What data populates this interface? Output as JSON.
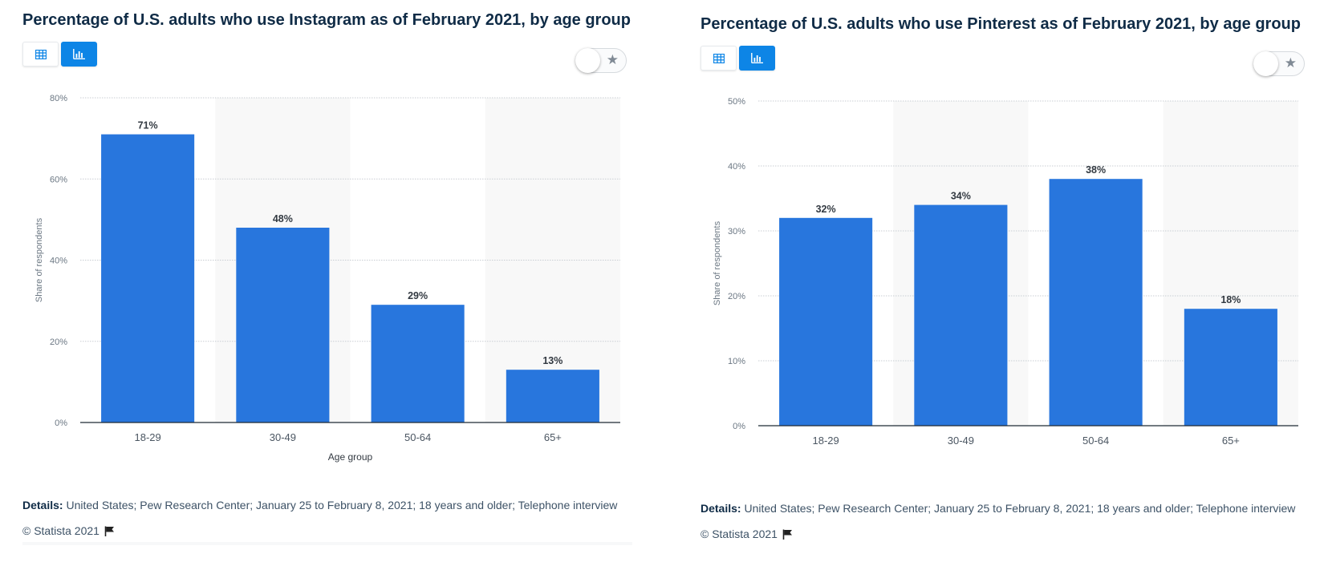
{
  "charts": [
    {
      "title": "Percentage of U.S. adults who use Instagram as of February 2021, by age group",
      "details_label": "Details:",
      "details_text": "United States; Pew Research Center; January 25 to February 8, 2021; 18 years and older; Telephone interview",
      "copyright": "© Statista 2021"
    },
    {
      "title": "Percentage of U.S. adults who use Pinterest as of February 2021, by age group",
      "details_label": "Details:",
      "details_text": "United States; Pew Research Center; January 25 to February 8, 2021; 18 years and older; Telephone interview",
      "copyright": "© Statista 2021"
    }
  ],
  "chart_data": [
    {
      "type": "bar",
      "title": "Percentage of U.S. adults who use Instagram as of February 2021, by age group",
      "categories": [
        "18-29",
        "30-49",
        "50-64",
        "65+"
      ],
      "values": [
        71,
        48,
        29,
        13
      ],
      "data_labels": [
        "71%",
        "48%",
        "29%",
        "13%"
      ],
      "xlabel": "Age group",
      "ylabel": "Share of respondents",
      "ylim": [
        0,
        80
      ],
      "yticks": [
        0,
        20,
        40,
        60,
        80
      ],
      "ytick_labels": [
        "0%",
        "20%",
        "40%",
        "60%",
        "80%"
      ],
      "grid": true,
      "bar_color": "#2876dd"
    },
    {
      "type": "bar",
      "title": "Percentage of U.S. adults who use Pinterest as of February 2021, by age group",
      "categories": [
        "18-29",
        "30-49",
        "50-64",
        "65+"
      ],
      "values": [
        32,
        34,
        38,
        18
      ],
      "data_labels": [
        "32%",
        "34%",
        "38%",
        "18%"
      ],
      "xlabel": "",
      "ylabel": "Share of respondents",
      "ylim": [
        0,
        50
      ],
      "yticks": [
        0,
        10,
        20,
        30,
        40,
        50
      ],
      "ytick_labels": [
        "0%",
        "10%",
        "20%",
        "30%",
        "40%",
        "50%"
      ],
      "grid": true,
      "bar_color": "#2876dd"
    }
  ],
  "colors": {
    "accent": "#0d85e6",
    "bar": "#2876dd",
    "title": "#0f2b46",
    "alt_band": "#f8f8f8"
  },
  "icons": {
    "table_view": "table-icon",
    "chart_view": "bar-chart-icon",
    "favorite": "star-icon",
    "report": "flag-icon"
  }
}
